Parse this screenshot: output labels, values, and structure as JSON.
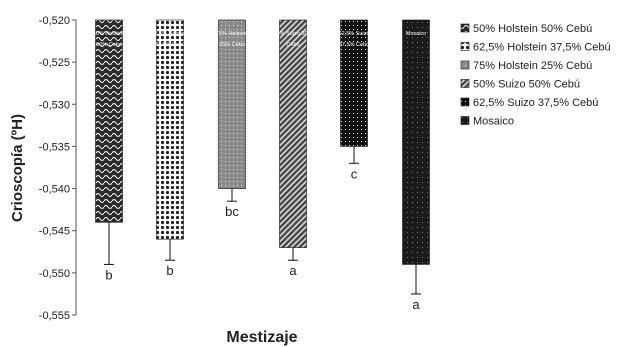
{
  "chart_data": {
    "type": "bar",
    "xlabel": "Mestizaje",
    "ylabel": "Crioscopía (ºH)",
    "ylim": [
      -0.555,
      -0.52
    ],
    "yticks": [
      "-0,520",
      "-0,525",
      "-0,530",
      "-0,535",
      "-0,540",
      "-0,545",
      "-0,550",
      "-0,555"
    ],
    "grid": false,
    "legend_position": "right",
    "series": [
      {
        "name": "50% Holstein  50% Cebú",
        "value": -0.544,
        "error": 0.005,
        "letter": "b",
        "inside_label": [
          "50% Holstein",
          "50% Cebú"
        ],
        "color": "#2a2a2a"
      },
      {
        "name": "62,5% Holstein  37,5% Cebú",
        "value": -0.546,
        "error": 0.0025,
        "letter": "b",
        "inside_label": [
          "62,5% Holstein",
          "37,5% Cebú"
        ],
        "color": "#3a3a3a"
      },
      {
        "name": "75% Holstein 25% Cebú",
        "value": -0.54,
        "error": 0.0015,
        "letter": "bc",
        "inside_label": [
          "75% Holstein",
          "25% Cebú"
        ],
        "color": "#8a8a8a"
      },
      {
        "name": "50% Suizo  50% Cebú",
        "value": -0.547,
        "error": 0.0015,
        "letter": "a",
        "inside_label": [
          "50% Suizo  50%",
          "Cebú"
        ],
        "color": "#4a4a4a"
      },
      {
        "name": "62,5% Suizo  37,5% Cebú",
        "value": -0.535,
        "error": 0.002,
        "letter": "c",
        "inside_label": [
          "62,5% Suizo",
          "37,5% Cebú"
        ],
        "color": "#111111"
      },
      {
        "name": "Mosaico",
        "value": -0.549,
        "error": 0.0035,
        "letter": "a",
        "inside_label": [
          "Mosaico",
          ""
        ],
        "color": "#1a1a1a"
      }
    ]
  }
}
